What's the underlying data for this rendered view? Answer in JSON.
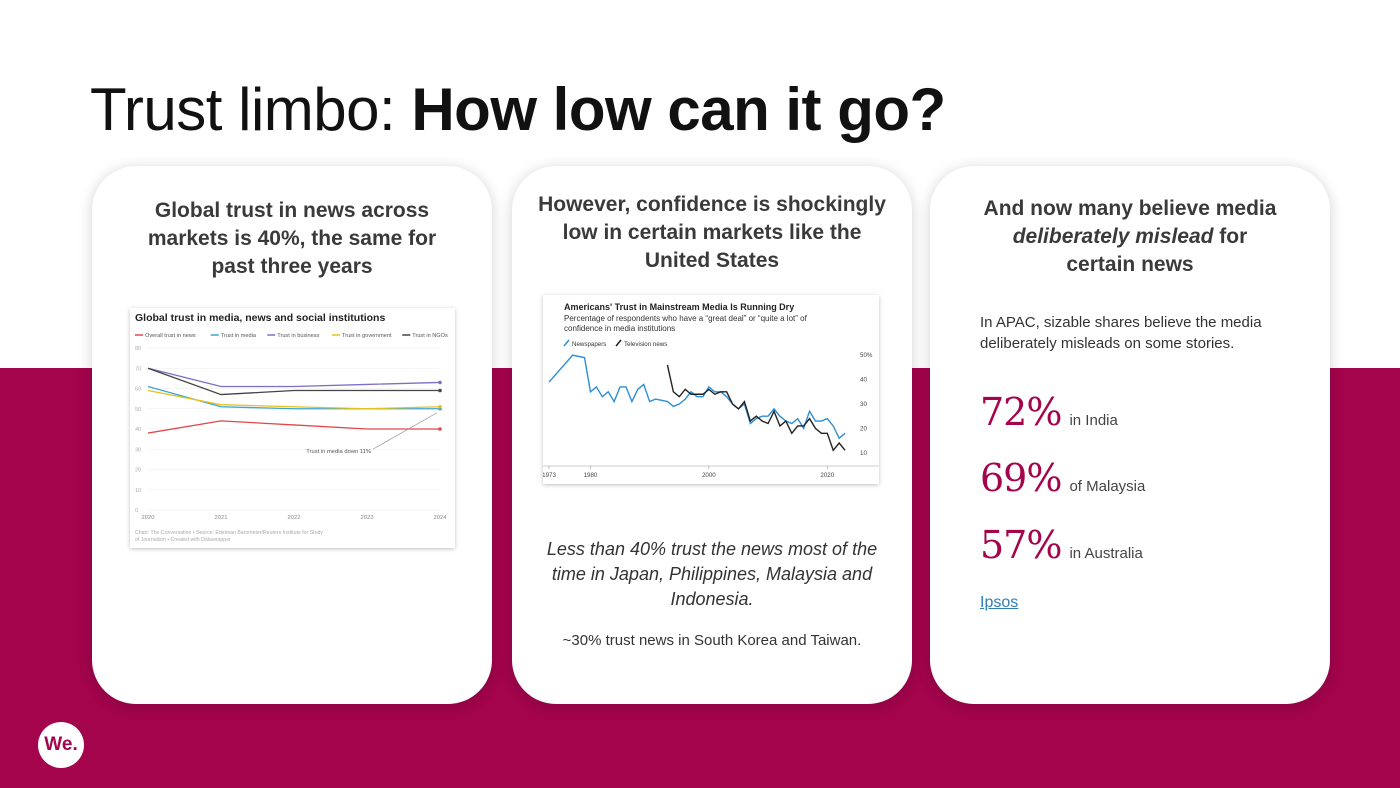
{
  "slide": {
    "title_light": "Trust limbo: ",
    "title_bold": "How low can it go?",
    "logo_text": "We.",
    "brand_color": "#a3044c"
  },
  "card1": {
    "heading": "Global trust in news across markets is 40%, the same for past three years"
  },
  "card2": {
    "heading": "However, confidence is shockingly low in certain markets like the United States",
    "italic_note": "Less than 40% trust the news most of the time in Japan, Philippines, Malaysia and Indonesia.",
    "small_note": "~30% trust news in South Korea and Taiwan."
  },
  "card3": {
    "heading_line1": "And now many believe media",
    "heading_italic": "deliberately mislead",
    "heading_after_italic": " for",
    "heading_line3": "certain news",
    "intro": "In APAC, sizable shares believe the media deliberately misleads on some stories.",
    "stats": [
      {
        "value": "72%",
        "label": "in India"
      },
      {
        "value": "69%",
        "label": "of Malaysia"
      },
      {
        "value": "57%",
        "label": "in Australia"
      }
    ],
    "source_link": "Ipsos"
  },
  "chart_data": [
    {
      "type": "line",
      "title": "Global trust in media, news and social institutions",
      "x": [
        2020,
        2021,
        2022,
        2023,
        2024
      ],
      "x_tick_labels": [
        "2020",
        "2021",
        "2022",
        "2023",
        "2024"
      ],
      "ylim": [
        0,
        80
      ],
      "y_ticks": [
        0,
        10,
        20,
        30,
        40,
        50,
        60,
        70,
        80
      ],
      "series": [
        {
          "name": "Overall trust in news",
          "color": "#e0484d",
          "values": [
            38,
            44,
            42,
            40,
            40
          ]
        },
        {
          "name": "Trust in media",
          "color": "#3aa5d8",
          "values": [
            61,
            51,
            50,
            50,
            50
          ]
        },
        {
          "name": "Trust in business",
          "color": "#7b6fc4",
          "values": [
            70,
            61,
            61,
            62,
            63
          ]
        },
        {
          "name": "Trust in government",
          "color": "#e8c21a",
          "values": [
            59,
            52,
            51,
            50,
            51
          ]
        },
        {
          "name": "Trust in NGOs",
          "color": "#444444",
          "values": [
            70,
            57,
            59,
            59,
            59
          ]
        }
      ],
      "annotation": "Trust in media down 11%",
      "footer": "Chart: The Conversation • Source: Edelman Barometer/Reuters Institute for Study of Journalism • Created with Datawrapper",
      "grid": true,
      "legend": "top"
    },
    {
      "type": "line",
      "title": "Americans' Trust in Mainstream Media Is Running Dry",
      "subtitle": "Percentage of respondents who have a “great deal” or “quite a lot” of confidence in media institutions",
      "xlim": [
        1973,
        2024
      ],
      "x_tick_labels": [
        "1973",
        "1980",
        "2000",
        "2020"
      ],
      "ylim": [
        5,
        55
      ],
      "y_tick_labels": [
        "10",
        "20",
        "30",
        "40",
        "50%"
      ],
      "series": [
        {
          "name": "Newspapers",
          "color": "#2b8fd6",
          "x": [
            1973,
            1977,
            1979,
            1980,
            1981,
            1982,
            1983,
            1984,
            1985,
            1986,
            1987,
            1988,
            1989,
            1990,
            1991,
            1993,
            1994,
            1995,
            1996,
            1997,
            1998,
            1999,
            2000,
            2001,
            2002,
            2003,
            2004,
            2005,
            2006,
            2007,
            2008,
            2009,
            2010,
            2011,
            2012,
            2013,
            2014,
            2015,
            2016,
            2017,
            2018,
            2019,
            2020,
            2021,
            2022,
            2023
          ],
          "values": [
            39,
            50,
            49,
            35,
            37,
            33,
            35,
            31,
            37,
            37,
            31,
            36,
            38,
            31,
            32,
            31,
            29,
            30,
            32,
            35,
            33,
            33,
            37,
            35,
            35,
            33,
            30,
            28,
            30,
            22,
            24,
            25,
            25,
            28,
            25,
            23,
            22,
            24,
            20,
            27,
            23,
            23,
            24,
            21,
            16,
            18
          ]
        },
        {
          "name": "Television news",
          "color": "#222222",
          "x": [
            1993,
            1994,
            1995,
            1996,
            1997,
            1998,
            1999,
            2000,
            2001,
            2002,
            2003,
            2004,
            2005,
            2006,
            2007,
            2008,
            2009,
            2010,
            2011,
            2012,
            2013,
            2014,
            2015,
            2016,
            2017,
            2018,
            2019,
            2020,
            2021,
            2022,
            2023
          ],
          "values": [
            46,
            35,
            33,
            36,
            34,
            34,
            34,
            36,
            34,
            35,
            35,
            30,
            28,
            31,
            23,
            25,
            23,
            22,
            27,
            21,
            23,
            18,
            21,
            21,
            24,
            20,
            18,
            18,
            11,
            14,
            11
          ]
        }
      ],
      "legend": "top-left",
      "grid": false
    }
  ]
}
